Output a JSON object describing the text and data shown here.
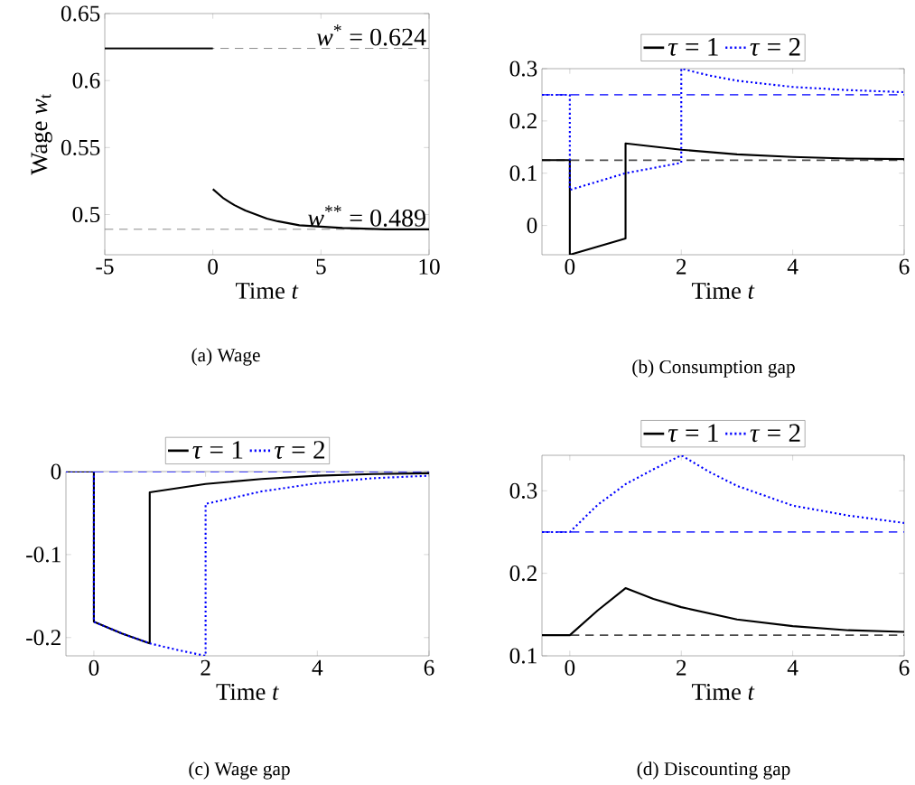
{
  "chart_data": [
    {
      "type": "line",
      "title": "(a) Wage",
      "xlabel": "Time *t*",
      "ylabel": "Wage *w*$_{t}$",
      "xlim": [
        -5,
        10
      ],
      "ylim": [
        0.47,
        0.65
      ],
      "xticks": [
        -5,
        0,
        5,
        10
      ],
      "yticks": [
        0.5,
        0.55,
        0.6,
        0.65
      ],
      "series": [
        {
          "color": "#000000",
          "line_style": "solid",
          "x": [
            -5,
            0
          ],
          "values": [
            0.624,
            0.624
          ]
        },
        {
          "color": "#000000",
          "line_style": "solid",
          "x": [
            0,
            0.5,
            1,
            1.5,
            2,
            2.5,
            3,
            4,
            5,
            6,
            8,
            10
          ],
          "values": [
            0.519,
            0.512,
            0.507,
            0.503,
            0.5,
            0.497,
            0.495,
            0.492,
            0.491,
            0.49,
            0.489,
            0.489
          ]
        }
      ],
      "ref_lines": [
        {
          "axis": "y",
          "value": 0.624,
          "label": "*w*$^{*}$ = 0.624",
          "color": "#808080",
          "line_style": "dashed"
        },
        {
          "axis": "y",
          "value": 0.489,
          "label": "*w*$^{**}$ = 0.489",
          "color": "#808080",
          "line_style": "dashed"
        }
      ]
    },
    {
      "type": "line",
      "title": "(b) Consumption gap",
      "xlabel": "Time *t*",
      "xlim": [
        -0.5,
        6
      ],
      "ylim": [
        -0.056,
        0.3
      ],
      "xticks": [
        0,
        2,
        4,
        6
      ],
      "yticks": [
        0,
        0.1,
        0.2,
        0.3
      ],
      "legend": "top",
      "series": [
        {
          "name": "*τ* = 1",
          "color": "#000000",
          "line_style": "solid",
          "x": [
            -0.5,
            0,
            0,
            1,
            1,
            1.5,
            2,
            3,
            4,
            5,
            6
          ],
          "values": [
            0.125,
            0.125,
            -0.056,
            -0.025,
            0.157,
            0.151,
            0.145,
            0.136,
            0.131,
            0.128,
            0.127
          ]
        },
        {
          "name": "*τ* = 2",
          "color": "#0000ff",
          "line_style": "dotted",
          "x": [
            -0.5,
            0,
            0,
            1,
            2,
            2,
            2.5,
            3,
            4,
            5,
            6
          ],
          "values": [
            0.25,
            0.25,
            0.068,
            0.1,
            0.12,
            0.3,
            0.287,
            0.277,
            0.265,
            0.259,
            0.255
          ]
        }
      ],
      "ref_lines": [
        {
          "axis": "y",
          "value": 0.25,
          "color": "#4040ff",
          "line_style": "dashed"
        },
        {
          "axis": "y",
          "value": 0.125,
          "color": "#4d4d4d",
          "line_style": "dashed"
        }
      ]
    },
    {
      "type": "line",
      "title": "(c) Wage gap",
      "xlabel": "Time *t*",
      "xlim": [
        -0.5,
        6
      ],
      "ylim": [
        -0.222,
        0
      ],
      "xticks": [
        0,
        2,
        4,
        6
      ],
      "yticks": [
        -0.2,
        -0.1,
        0
      ],
      "legend": "top",
      "series": [
        {
          "name": "*τ* = 1",
          "color": "#000000",
          "line_style": "solid",
          "x": [
            -0.5,
            0,
            0,
            0.5,
            1,
            1,
            2,
            3,
            4,
            5,
            6
          ],
          "values": [
            0,
            0,
            -0.181,
            -0.195,
            -0.207,
            -0.025,
            -0.015,
            -0.009,
            -0.005,
            -0.003,
            -0.002
          ]
        },
        {
          "name": "*τ* = 2",
          "color": "#0000ff",
          "line_style": "dotted",
          "x": [
            -0.5,
            0,
            0,
            0.5,
            1,
            1.5,
            2,
            2,
            3,
            4,
            5,
            6
          ],
          "values": [
            0,
            0,
            -0.181,
            -0.195,
            -0.207,
            -0.215,
            -0.222,
            -0.039,
            -0.024,
            -0.014,
            -0.008,
            -0.005
          ]
        }
      ],
      "ref_lines": [
        {
          "axis": "y",
          "value": 0,
          "color": "#4d4d4d",
          "line_style": "dashed"
        },
        {
          "axis": "y",
          "value": 0,
          "color": "#4040ff",
          "line_style": "dashed"
        }
      ]
    },
    {
      "type": "line",
      "title": "(d) Discounting gap",
      "xlabel": "Time *t*",
      "xlim": [
        -0.5,
        6
      ],
      "ylim": [
        0.1,
        0.343
      ],
      "xticks": [
        0,
        2,
        4,
        6
      ],
      "yticks": [
        0.1,
        0.2,
        0.3
      ],
      "legend": "top",
      "series": [
        {
          "name": "*τ* = 1",
          "color": "#000000",
          "line_style": "solid",
          "x": [
            -0.5,
            0,
            0.5,
            1,
            1.5,
            2,
            3,
            4,
            5,
            6
          ],
          "values": [
            0.125,
            0.125,
            0.155,
            0.182,
            0.169,
            0.159,
            0.144,
            0.136,
            0.131,
            0.129
          ]
        },
        {
          "name": "*τ* = 2",
          "color": "#0000ff",
          "line_style": "dotted",
          "x": [
            -0.5,
            0,
            0.5,
            1,
            1.5,
            2,
            2.5,
            3,
            4,
            5,
            6
          ],
          "values": [
            0.25,
            0.25,
            0.283,
            0.308,
            0.326,
            0.343,
            0.323,
            0.306,
            0.282,
            0.27,
            0.261
          ]
        }
      ],
      "ref_lines": [
        {
          "axis": "y",
          "value": 0.25,
          "color": "#4040ff",
          "line_style": "dashed"
        },
        {
          "axis": "y",
          "value": 0.125,
          "color": "#4d4d4d",
          "line_style": "dashed"
        }
      ]
    }
  ]
}
